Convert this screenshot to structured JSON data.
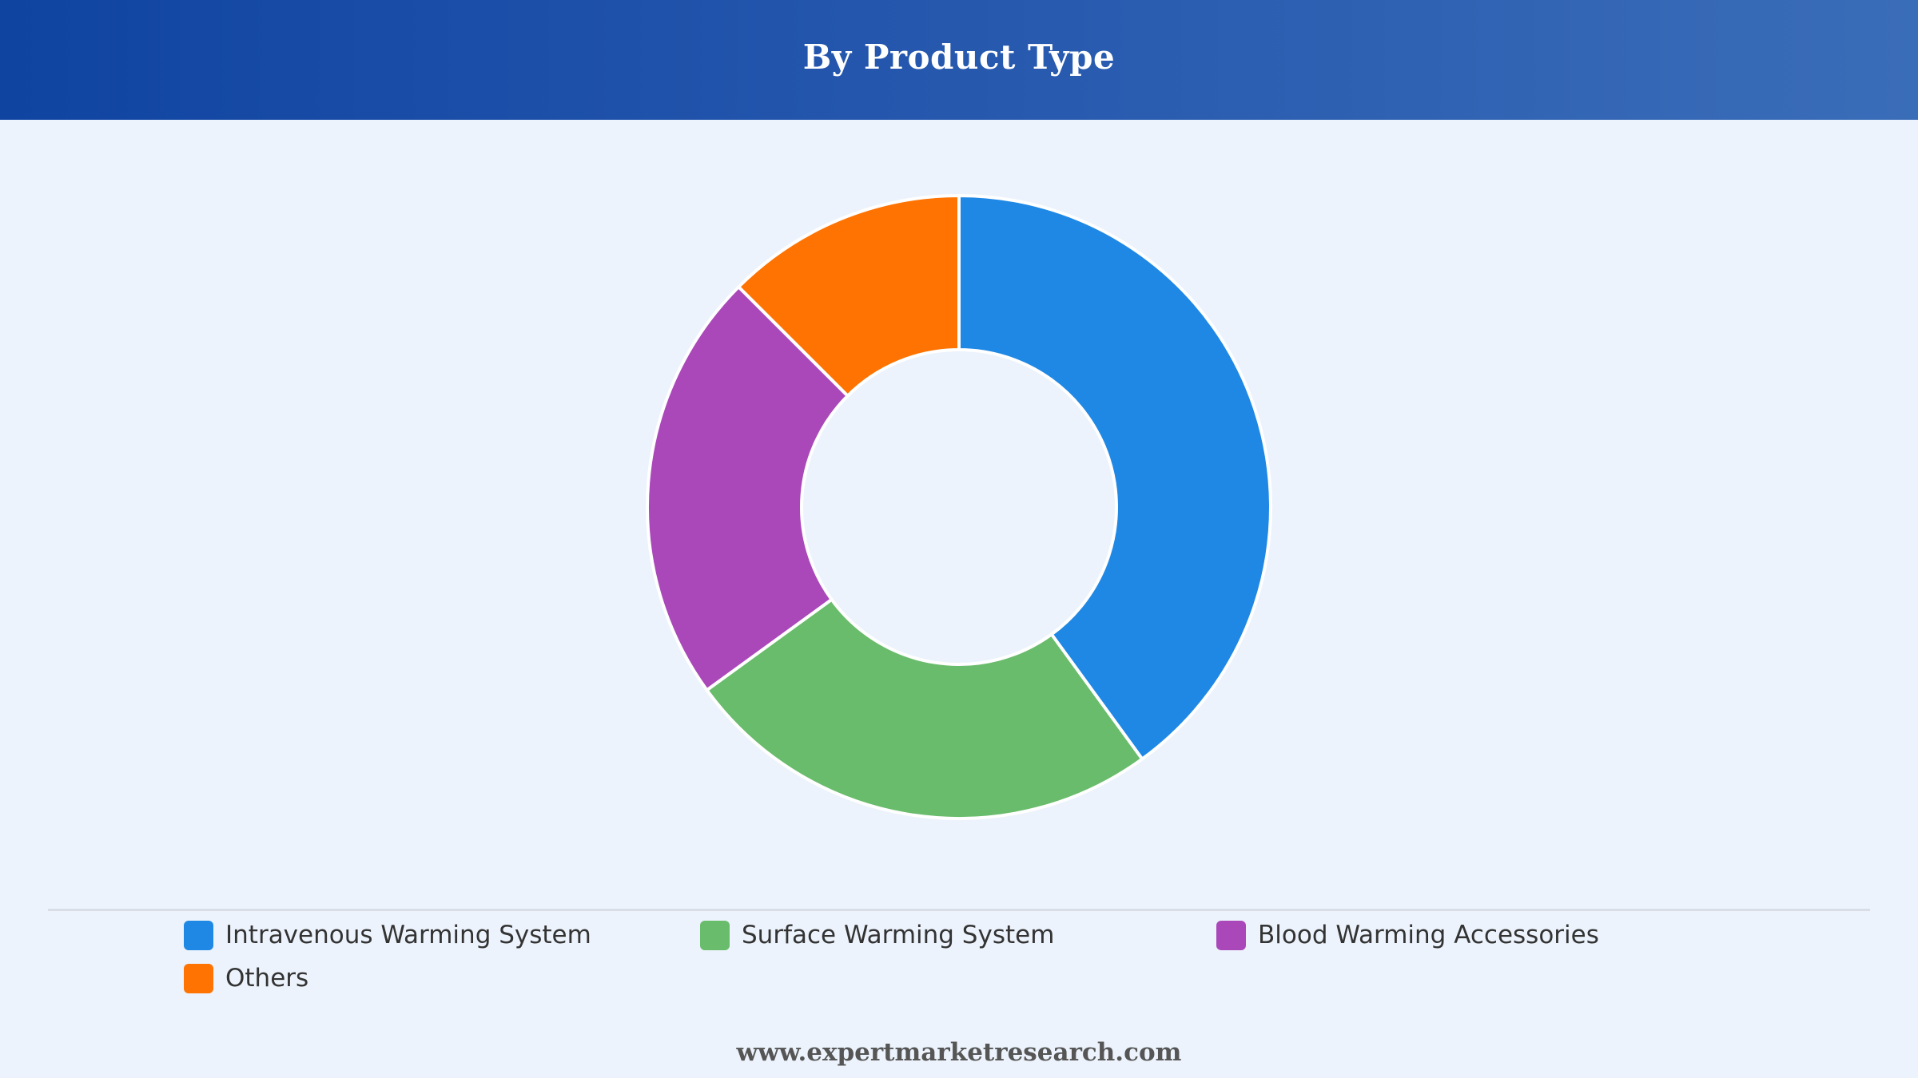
{
  "header": {
    "title": "By Product Type"
  },
  "chart_data": {
    "type": "pie",
    "variant": "donut",
    "title": "By Product Type",
    "categories": [
      "Intravenous Warming System",
      "Surface Warming System",
      "Blood Warming Accessories",
      "Others"
    ],
    "values": [
      40,
      25,
      22.5,
      12.5
    ],
    "unit": "%",
    "colors": [
      "#1f88e5",
      "#69bc6b",
      "#aa48ba",
      "#fe7301"
    ],
    "legend_position": "bottom"
  },
  "footer": {
    "source": "www.expertmarketresearch.com"
  }
}
